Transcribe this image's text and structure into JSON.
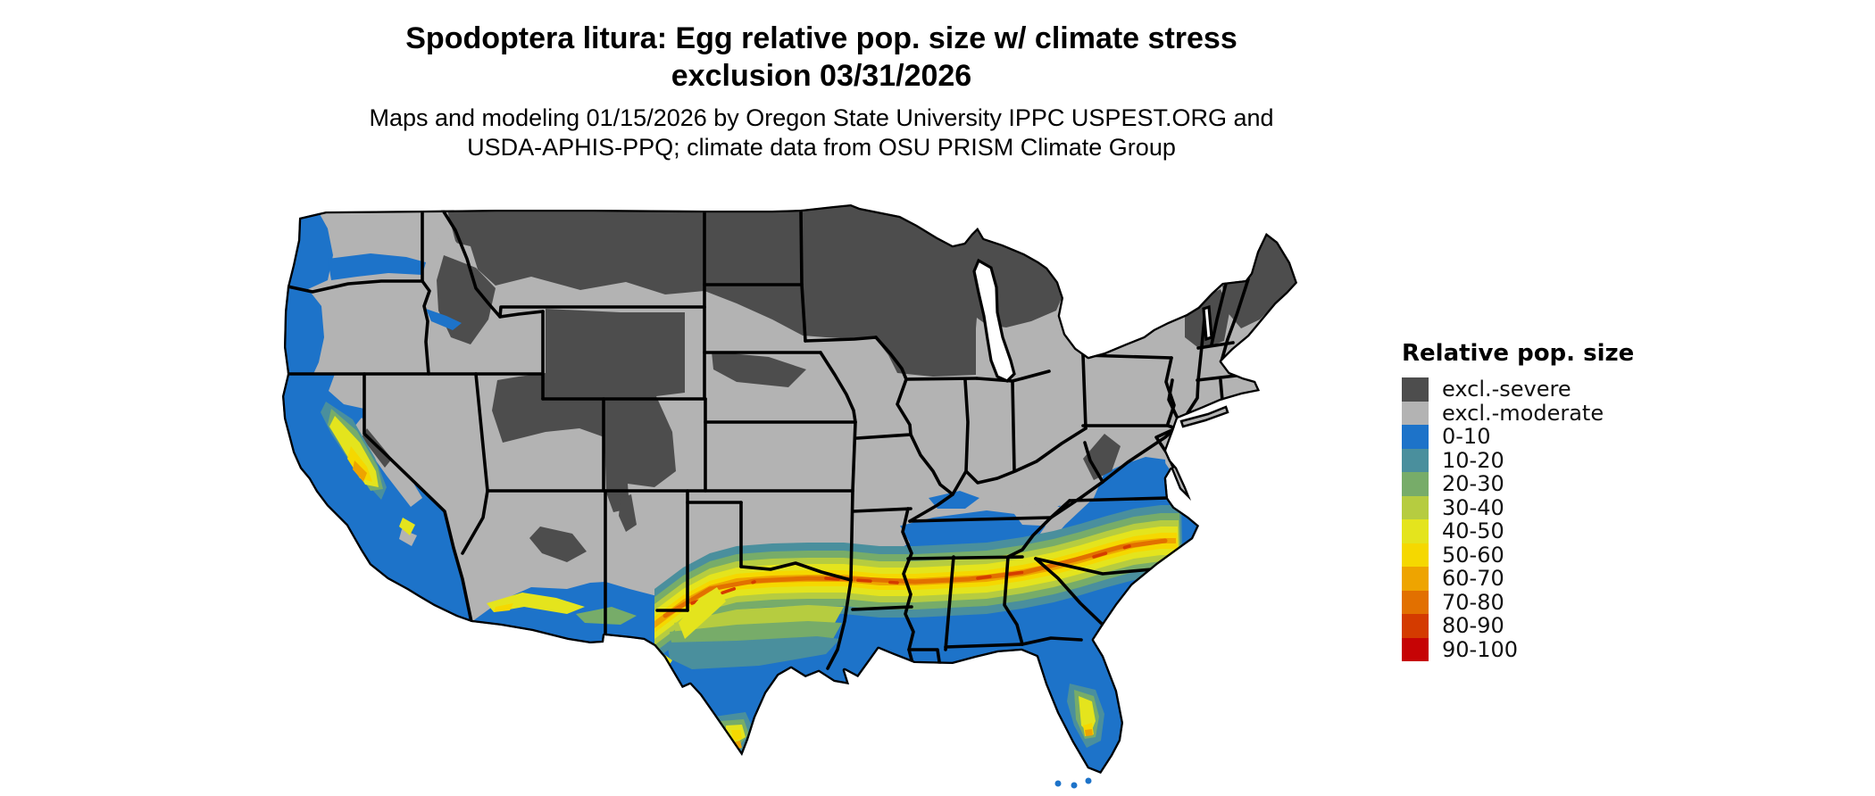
{
  "title": {
    "line1": "Spodoptera litura: Egg relative pop. size w/ climate stress",
    "line2": "exclusion 03/31/2026"
  },
  "subtitle": {
    "line1": "Maps and modeling 01/15/2026 by Oregon State University IPPC USPEST.ORG and",
    "line2": "USDA-APHIS-PPQ; climate data from OSU PRISM Climate Group"
  },
  "legend": {
    "title": "Relative pop. size",
    "entries": [
      {
        "label": "excl.-severe",
        "color": "#4d4d4d"
      },
      {
        "label": "excl.-moderate",
        "color": "#b3b3b3"
      },
      {
        "label": "0-10",
        "color": "#1d73c9"
      },
      {
        "label": "10-20",
        "color": "#4a8f9d"
      },
      {
        "label": "20-30",
        "color": "#77ac69"
      },
      {
        "label": "30-40",
        "color": "#b6cc40"
      },
      {
        "label": "40-50",
        "color": "#e4e41d"
      },
      {
        "label": "50-60",
        "color": "#f5d800"
      },
      {
        "label": "60-70",
        "color": "#eea400"
      },
      {
        "label": "70-80",
        "color": "#e27000"
      },
      {
        "label": "80-90",
        "color": "#d43b00"
      },
      {
        "label": "90-100",
        "color": "#c60405"
      }
    ]
  },
  "map": {
    "region": "Continental United States",
    "type": "raster risk map with state boundaries",
    "border_color": "#000000",
    "water_color": "#ffffff",
    "background_color": "#ffffff"
  }
}
